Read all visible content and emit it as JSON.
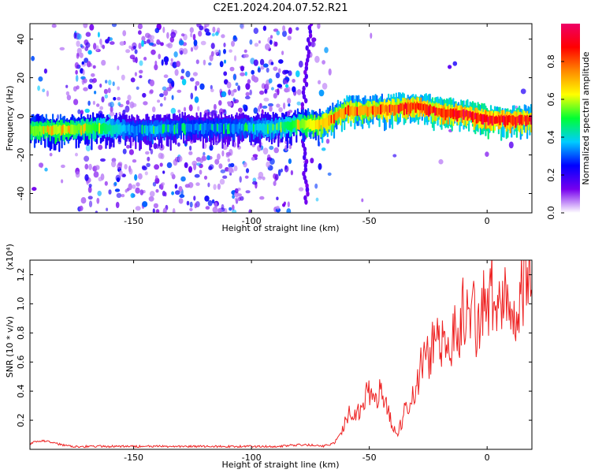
{
  "title": "C2E1.2024.204.07.52.R21",
  "chart_data": [
    {
      "type": "heatmap",
      "title": "C2E1.2024.204.07.52.R21",
      "xlabel": "Height of straight line (km)",
      "ylabel": "Frequency (Hz)",
      "xlim": [
        -194,
        19
      ],
      "ylim": [
        -50,
        48
      ],
      "xticks": [
        -150,
        -100,
        -50,
        0
      ],
      "yticks": [
        -40,
        -20,
        0,
        20,
        40
      ],
      "colorbar": {
        "label": "Normalized spectral amplitude",
        "range": [
          0,
          1
        ],
        "ticks": [
          0.0,
          0.2,
          0.4,
          0.6,
          0.8
        ],
        "colors": [
          "#ffffff",
          "#7700ee",
          "#0000ff",
          "#00ccff",
          "#00ff33",
          "#ffff00",
          "#ff8800",
          "#ff0000",
          "#ee0066"
        ]
      },
      "ridge": {
        "x": [
          -194,
          -180,
          -165,
          -150,
          -140,
          -130,
          -120,
          -110,
          -100,
          -90,
          -80,
          -70,
          -60,
          -50,
          -40,
          -30,
          -20,
          -10,
          0,
          10,
          19
        ],
        "y": [
          -7,
          -7,
          -6,
          -7,
          -7,
          -6,
          -6,
          -6,
          -6,
          -6,
          -4,
          -4,
          3,
          3,
          4,
          5,
          2,
          1,
          -2,
          -2,
          -2
        ],
        "peak_amplitude": [
          0.55,
          0.6,
          0.5,
          0.3,
          0.35,
          0.3,
          0.3,
          0.3,
          0.35,
          0.4,
          0.55,
          0.7,
          0.75,
          0.75,
          0.8,
          0.85,
          0.85,
          0.9,
          0.9,
          0.85,
          0.8
        ]
      }
    },
    {
      "type": "line",
      "xlabel": "Height of straight line (km)",
      "ylabel": "SNR (10 * v/v)",
      "y_multiplier": "(x10⁴)",
      "xlim": [
        -194,
        19
      ],
      "ylim": [
        0,
        1.3
      ],
      "xticks": [
        -150,
        -100,
        -50,
        0
      ],
      "yticks": [
        0.2,
        0.4,
        0.6,
        0.8,
        1.0,
        1.2
      ],
      "color": "#ee2222",
      "series": [
        {
          "x": [
            -194,
            -190,
            -185,
            -180,
            -175,
            -170,
            -160,
            -150,
            -140,
            -130,
            -120,
            -110,
            -100,
            -90,
            -80,
            -75,
            -70,
            -65,
            -62,
            -60,
            -58,
            -55,
            -53,
            -50,
            -48,
            -45,
            -42,
            -40,
            -38,
            -36,
            -35,
            -33,
            -30,
            -28,
            -25,
            -23,
            -21,
            -20,
            -18,
            -16,
            -14,
            -12,
            -10,
            -8,
            -6,
            -4,
            -2,
            0,
            2,
            4,
            6,
            8,
            10,
            12,
            14,
            16,
            18,
            19
          ],
          "y": [
            0.04,
            0.06,
            0.05,
            0.03,
            0.02,
            0.02,
            0.02,
            0.02,
            0.02,
            0.02,
            0.02,
            0.02,
            0.02,
            0.02,
            0.03,
            0.03,
            0.02,
            0.04,
            0.12,
            0.2,
            0.28,
            0.24,
            0.35,
            0.45,
            0.3,
            0.42,
            0.26,
            0.15,
            0.12,
            0.2,
            0.28,
            0.3,
            0.45,
            0.6,
            0.65,
            0.72,
            0.85,
            0.78,
            0.65,
            0.72,
            0.95,
            0.8,
            1.0,
            0.88,
            0.98,
            0.8,
            1.05,
            0.95,
            1.12,
            0.95,
            1.05,
            1.0,
            1.15,
            1.05,
            1.08,
            1.25,
            1.12,
            1.08
          ]
        }
      ]
    }
  ]
}
